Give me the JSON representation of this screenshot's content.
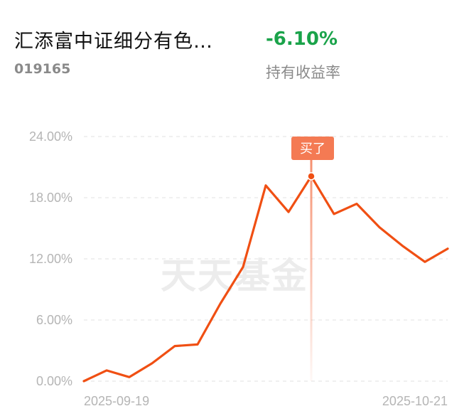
{
  "fund": {
    "name": "汇添富中证细分有色…",
    "code": "019165",
    "return_value": "-6.10%",
    "return_label": "持有收益率"
  },
  "watermark": "天天基金",
  "colors": {
    "line": "#f04f13",
    "marker": "#f47a53",
    "grid": "#e6e6e6",
    "positive": "#1aa34a"
  },
  "chart_data": {
    "type": "line",
    "title": "",
    "xlabel": "",
    "ylabel": "",
    "ylim": [
      0,
      24
    ],
    "yticks": [
      0,
      6,
      12,
      18,
      24
    ],
    "ytick_labels": [
      "0.00%",
      "6.00%",
      "12.00%",
      "18.00%",
      "24.00%"
    ],
    "x_labels": [
      "2025-09-19",
      "2025-10-21"
    ],
    "series": [
      {
        "values": [
          0.0,
          1.05,
          0.4,
          1.75,
          3.45,
          3.6,
          7.6,
          11.2,
          19.2,
          16.6,
          20.1,
          16.4,
          17.4,
          15.1,
          13.3,
          11.7,
          13.0
        ]
      }
    ],
    "buy_marker": {
      "label": "买了",
      "index": 10
    },
    "grid": true
  }
}
